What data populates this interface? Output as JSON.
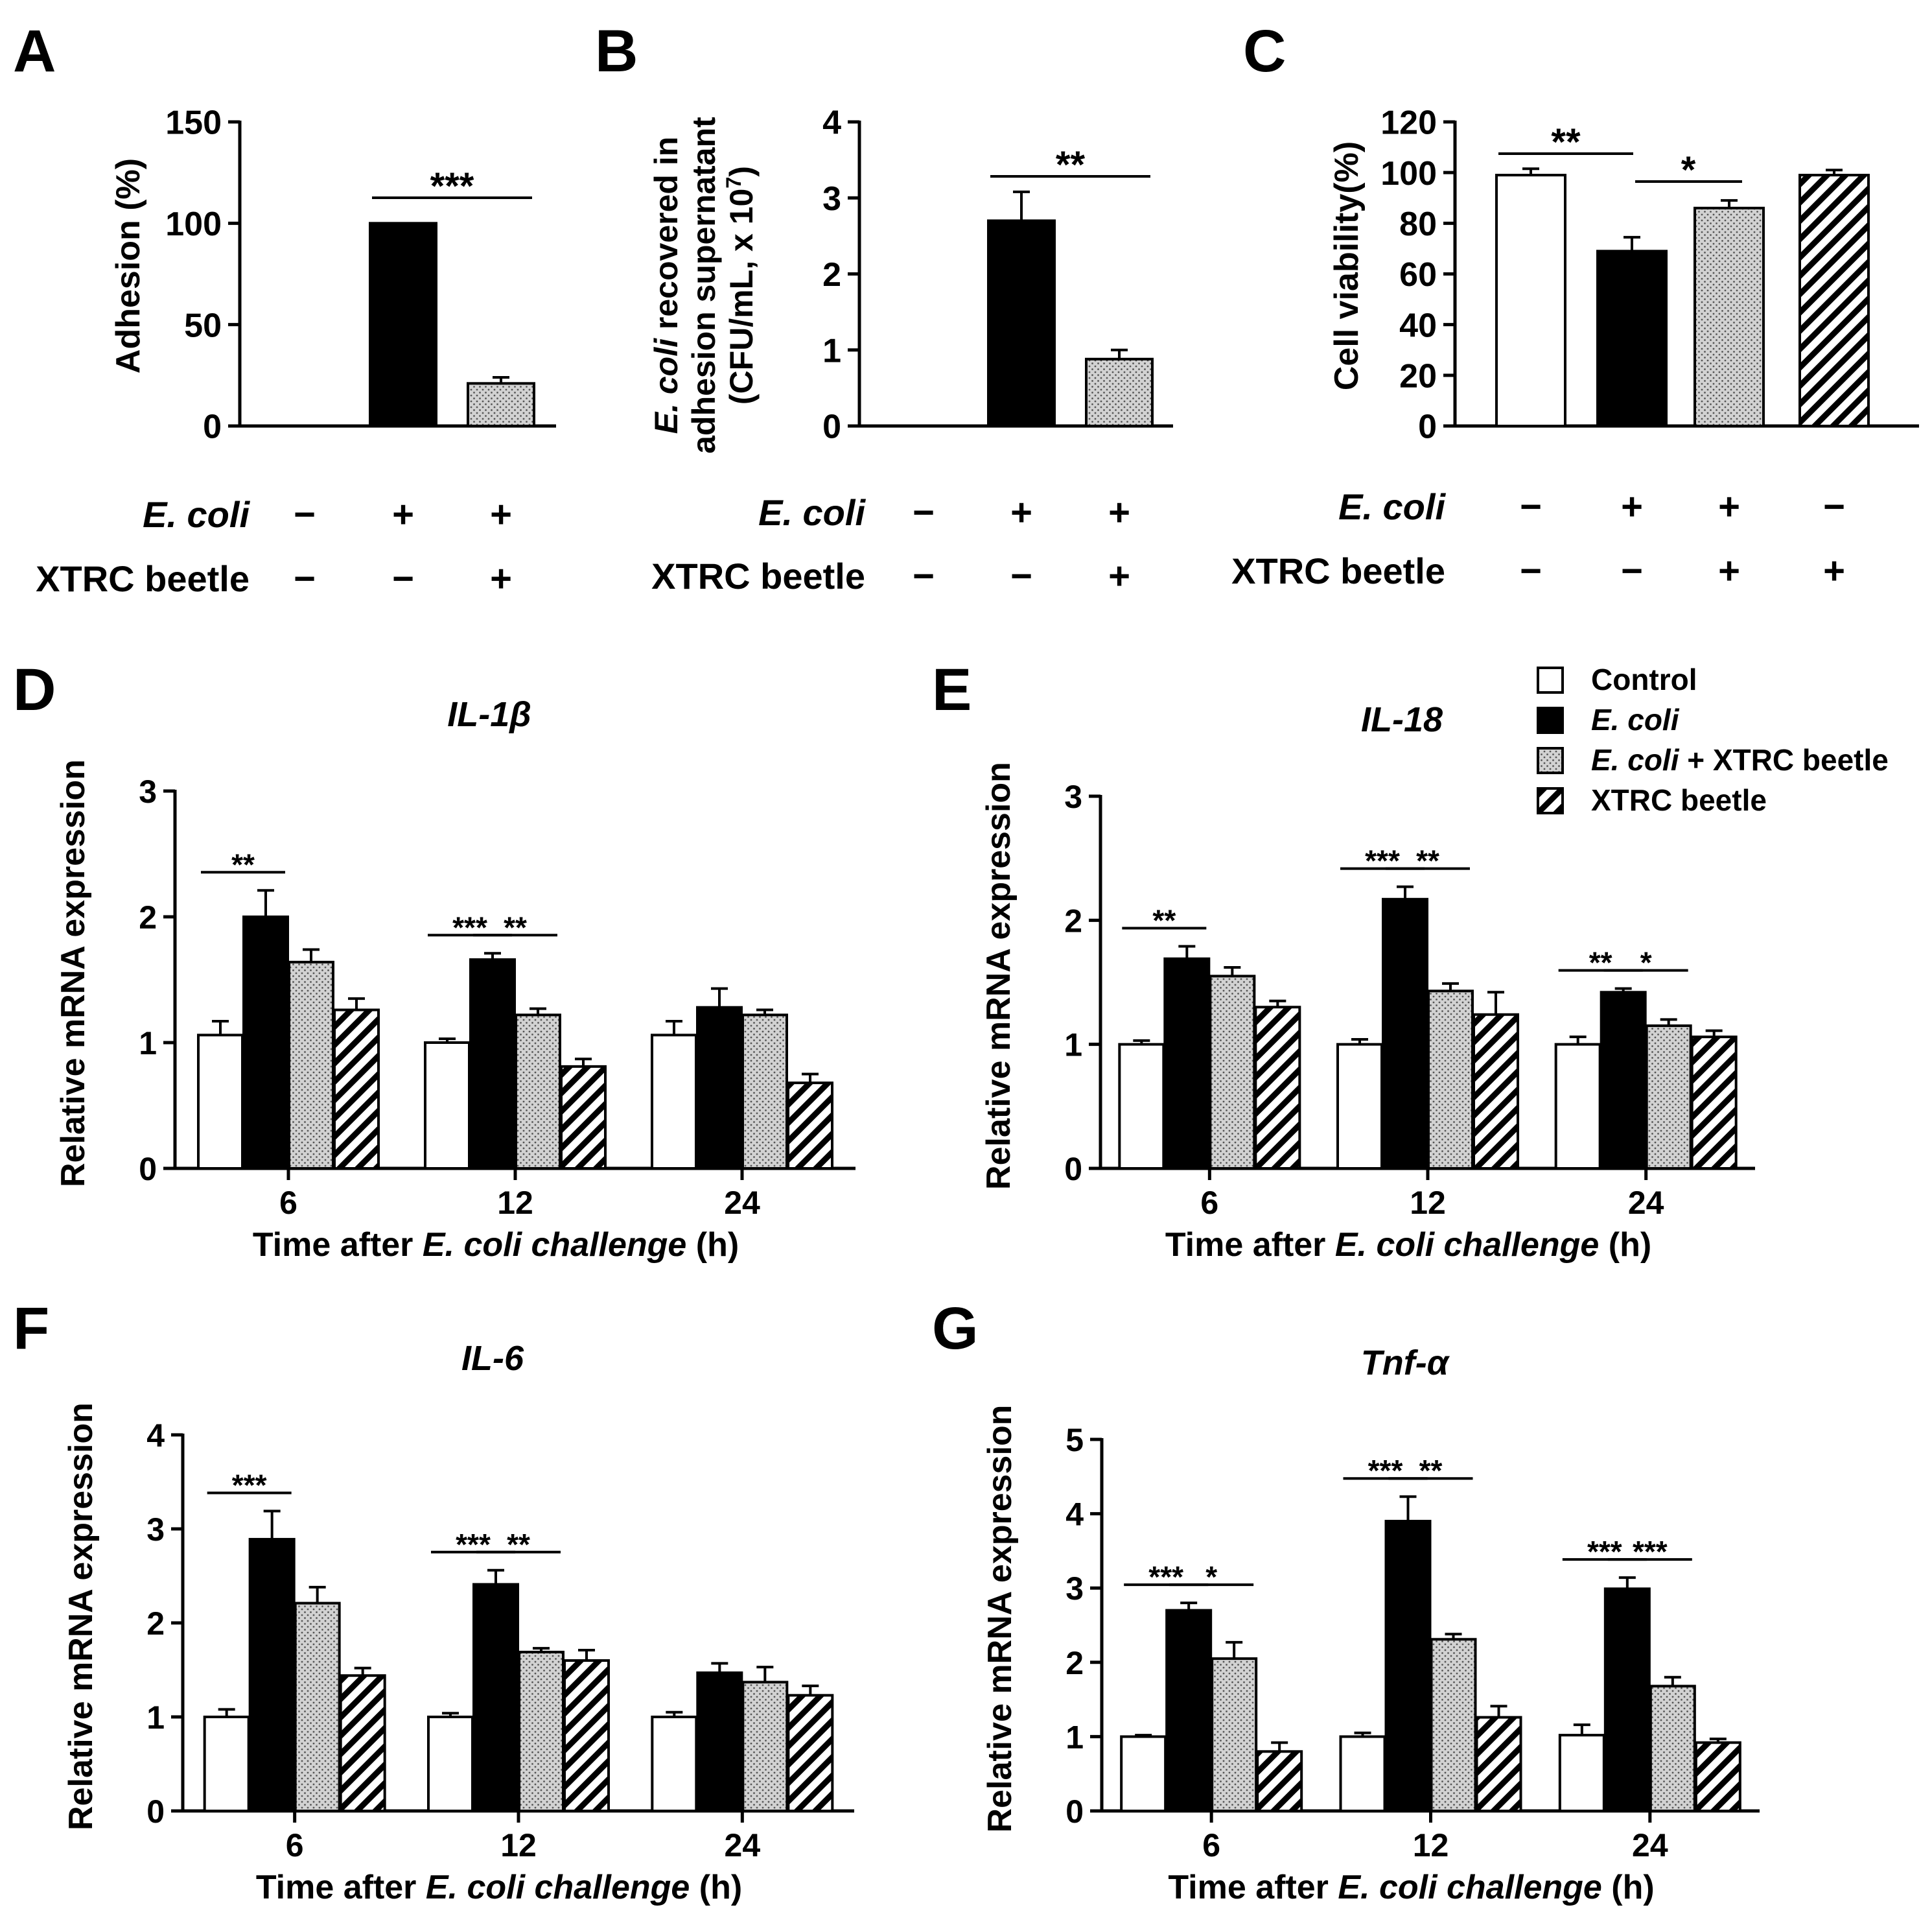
{
  "colors": {
    "control": "#ffffff",
    "ecoli": "#000000",
    "ecoli_xtrc": "#d4d4d4",
    "xtrc": "#ffffff",
    "stroke": "#000000"
  },
  "legend": {
    "items": [
      {
        "label": "Control",
        "pattern": "white"
      },
      {
        "label": "E. coli",
        "pattern": "black",
        "italic": true
      },
      {
        "label_italic": "E. coli",
        "label_rest": " + XTRC beetle",
        "pattern": "dots"
      },
      {
        "label": "XTRC beetle",
        "pattern": "hatch"
      }
    ]
  },
  "chart_data": [
    {
      "panel": "A",
      "type": "bar",
      "ylabel": "Adhesion (%)",
      "ylim": [
        0,
        150
      ],
      "yticks": [
        0,
        50,
        100,
        150
      ],
      "groups": [
        {
          "ecoli": "−",
          "xtrc": "−",
          "value": 0,
          "err": 0,
          "pattern": "white"
        },
        {
          "ecoli": "+",
          "xtrc": "−",
          "value": 100,
          "err": 0,
          "pattern": "black"
        },
        {
          "ecoli": "+",
          "xtrc": "+",
          "value": 21,
          "err": 3,
          "pattern": "dots"
        }
      ],
      "row_labels": {
        "ecoli": "E. coli",
        "xtrc": "XTRC beetle"
      },
      "significance": [
        {
          "from": 1,
          "to": 2,
          "label": "***"
        }
      ]
    },
    {
      "panel": "B",
      "type": "bar",
      "ylabel_line1_italic": "E. coli",
      "ylabel_line1_rest": " recovered in",
      "ylabel_line2": "adhesion supernatant",
      "ylabel_line3": "(CFU/mL, x 10",
      "ylabel_line3_sup": "7",
      "ylabel_line3_end": ")",
      "ylim": [
        0,
        4
      ],
      "yticks": [
        0,
        1,
        2,
        3,
        4
      ],
      "groups": [
        {
          "ecoli": "−",
          "xtrc": "−",
          "value": 0,
          "err": 0,
          "pattern": "white"
        },
        {
          "ecoli": "+",
          "xtrc": "−",
          "value": 2.7,
          "err": 0.38,
          "pattern": "black"
        },
        {
          "ecoli": "+",
          "xtrc": "+",
          "value": 0.88,
          "err": 0.12,
          "pattern": "dots"
        }
      ],
      "row_labels": {
        "ecoli": "E. coli",
        "xtrc": "XTRC beetle"
      },
      "significance": [
        {
          "from": 1,
          "to": 2,
          "label": "**"
        }
      ]
    },
    {
      "panel": "C",
      "type": "bar",
      "ylabel": "Cell viability(%)",
      "ylim": [
        0,
        120
      ],
      "yticks": [
        0,
        20,
        40,
        60,
        80,
        100,
        120
      ],
      "groups": [
        {
          "ecoli": "−",
          "xtrc": "−",
          "value": 99,
          "err": 2.5,
          "pattern": "white"
        },
        {
          "ecoli": "+",
          "xtrc": "−",
          "value": 69,
          "err": 5.5,
          "pattern": "black"
        },
        {
          "ecoli": "+",
          "xtrc": "+",
          "value": 86,
          "err": 3,
          "pattern": "dots"
        },
        {
          "ecoli": "−",
          "xtrc": "+",
          "value": 99,
          "err": 2,
          "pattern": "hatch"
        }
      ],
      "row_labels": {
        "ecoli": "E. coli",
        "xtrc": "XTRC beetle"
      },
      "significance": [
        {
          "from": 0,
          "to": 1,
          "label": "**"
        },
        {
          "from": 1,
          "to": 2,
          "label": "*"
        }
      ]
    },
    {
      "panel": "D",
      "type": "bar",
      "title": "IL-1β",
      "xlabel_pre": "Time after ",
      "xlabel_italic": "E. coli challenge",
      "xlabel_post": " (h)",
      "ylabel": "Relative mRNA expression",
      "ylim": [
        0,
        3
      ],
      "yticks": [
        0,
        1,
        2,
        3
      ],
      "categories": [
        "6",
        "12",
        "24"
      ],
      "series": [
        {
          "name": "Control",
          "pattern": "white",
          "values": [
            1.06,
            1.0,
            1.06
          ],
          "errors": [
            0.11,
            0.03,
            0.11
          ]
        },
        {
          "name": "E. coli",
          "pattern": "black",
          "values": [
            2.0,
            1.66,
            1.28
          ],
          "errors": [
            0.21,
            0.05,
            0.15
          ]
        },
        {
          "name": "E. coli + XTRC beetle",
          "pattern": "dots",
          "values": [
            1.64,
            1.22,
            1.22
          ],
          "errors": [
            0.1,
            0.05,
            0.04
          ]
        },
        {
          "name": "XTRC beetle",
          "pattern": "hatch",
          "values": [
            1.26,
            0.81,
            0.68
          ],
          "errors": [
            0.09,
            0.06,
            0.07
          ]
        }
      ],
      "significance": [
        {
          "group": 0,
          "from": 0,
          "to": 1,
          "label": "**"
        },
        {
          "group": 1,
          "from": 0,
          "to": 1,
          "label": "***"
        },
        {
          "group": 1,
          "from": 1,
          "to": 2,
          "label": "**"
        }
      ]
    },
    {
      "panel": "E",
      "type": "bar",
      "title": "IL-18",
      "xlabel_pre": "Time after ",
      "xlabel_italic": "E. coli challenge",
      "xlabel_post": " (h)",
      "ylabel": "Relative mRNA expression",
      "ylim": [
        0,
        3
      ],
      "yticks": [
        0,
        1,
        2,
        3
      ],
      "categories": [
        "6",
        "12",
        "24"
      ],
      "series": [
        {
          "name": "Control",
          "pattern": "white",
          "values": [
            1.0,
            1.0,
            1.0
          ],
          "errors": [
            0.03,
            0.04,
            0.06
          ]
        },
        {
          "name": "E. coli",
          "pattern": "black",
          "values": [
            1.69,
            2.17,
            1.42
          ],
          "errors": [
            0.1,
            0.1,
            0.03
          ]
        },
        {
          "name": "E. coli + XTRC beetle",
          "pattern": "dots",
          "values": [
            1.55,
            1.43,
            1.15
          ],
          "errors": [
            0.07,
            0.06,
            0.05
          ]
        },
        {
          "name": "XTRC beetle",
          "pattern": "hatch",
          "values": [
            1.3,
            1.24,
            1.06
          ],
          "errors": [
            0.05,
            0.18,
            0.05
          ]
        }
      ],
      "significance": [
        {
          "group": 0,
          "from": 0,
          "to": 1,
          "label": "**"
        },
        {
          "group": 1,
          "from": 0,
          "to": 1,
          "label": "***"
        },
        {
          "group": 1,
          "from": 1,
          "to": 2,
          "label": "**"
        },
        {
          "group": 2,
          "from": 0,
          "to": 1,
          "label": "**"
        },
        {
          "group": 2,
          "from": 1,
          "to": 2,
          "label": "*"
        }
      ]
    },
    {
      "panel": "F",
      "type": "bar",
      "title": "IL-6",
      "xlabel_pre": "Time after ",
      "xlabel_italic": "E. coli challenge",
      "xlabel_post": " (h)",
      "ylabel": "Relative mRNA expression",
      "ylim": [
        0,
        4
      ],
      "yticks": [
        0,
        1,
        2,
        3,
        4
      ],
      "categories": [
        "6",
        "12",
        "24"
      ],
      "series": [
        {
          "name": "Control",
          "pattern": "white",
          "values": [
            1.0,
            1.0,
            1.0
          ],
          "errors": [
            0.08,
            0.04,
            0.05
          ]
        },
        {
          "name": "E. coli",
          "pattern": "black",
          "values": [
            2.89,
            2.41,
            1.47
          ],
          "errors": [
            0.3,
            0.15,
            0.1
          ]
        },
        {
          "name": "E. coli + XTRC beetle",
          "pattern": "dots",
          "values": [
            2.21,
            1.69,
            1.37
          ],
          "errors": [
            0.17,
            0.04,
            0.16
          ]
        },
        {
          "name": "XTRC beetle",
          "pattern": "hatch",
          "values": [
            1.44,
            1.6,
            1.23
          ],
          "errors": [
            0.08,
            0.11,
            0.1
          ]
        }
      ],
      "significance": [
        {
          "group": 0,
          "from": 0,
          "to": 1,
          "label": "***"
        },
        {
          "group": 1,
          "from": 0,
          "to": 1,
          "label": "***"
        },
        {
          "group": 1,
          "from": 1,
          "to": 2,
          "label": "**"
        }
      ]
    },
    {
      "panel": "G",
      "type": "bar",
      "title": "Tnf-α",
      "xlabel_pre": "Time after ",
      "xlabel_italic": "E. coli challenge",
      "xlabel_post": " (h)",
      "ylabel": "Relative mRNA expression",
      "ylim": [
        0,
        5
      ],
      "yticks": [
        0,
        1,
        2,
        3,
        4,
        5
      ],
      "categories": [
        "6",
        "12",
        "24"
      ],
      "series": [
        {
          "name": "Control",
          "pattern": "white",
          "values": [
            1.0,
            1.0,
            1.02
          ],
          "errors": [
            0.02,
            0.05,
            0.14
          ]
        },
        {
          "name": "E. coli",
          "pattern": "black",
          "values": [
            2.7,
            3.9,
            2.99
          ],
          "errors": [
            0.1,
            0.33,
            0.15
          ]
        },
        {
          "name": "E. coli + XTRC beetle",
          "pattern": "dots",
          "values": [
            2.05,
            2.31,
            1.68
          ],
          "errors": [
            0.22,
            0.07,
            0.12
          ]
        },
        {
          "name": "XTRC beetle",
          "pattern": "hatch",
          "values": [
            0.8,
            1.26,
            0.92
          ],
          "errors": [
            0.12,
            0.15,
            0.05
          ]
        }
      ],
      "significance": [
        {
          "group": 0,
          "from": 0,
          "to": 1,
          "label": "***"
        },
        {
          "group": 0,
          "from": 1,
          "to": 2,
          "label": "*"
        },
        {
          "group": 1,
          "from": 0,
          "to": 1,
          "label": "***"
        },
        {
          "group": 1,
          "from": 1,
          "to": 2,
          "label": "**"
        },
        {
          "group": 2,
          "from": 0,
          "to": 1,
          "label": "***"
        },
        {
          "group": 2,
          "from": 1,
          "to": 2,
          "label": "***"
        }
      ]
    }
  ]
}
